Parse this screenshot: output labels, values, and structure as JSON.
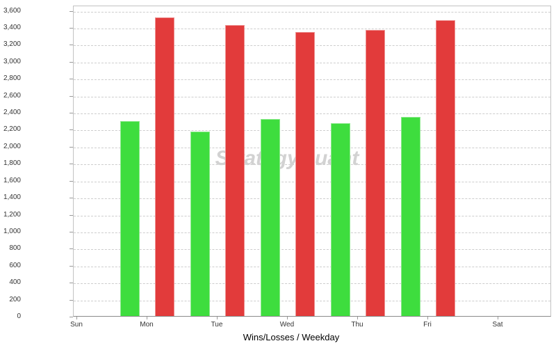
{
  "chart_data": {
    "type": "bar",
    "title": "",
    "xlabel": "Wins/Losses / Weekday",
    "ylabel": "",
    "categories": [
      "Sun",
      "Mon",
      "Tue",
      "Wed",
      "Thu",
      "Fri",
      "Sat"
    ],
    "series": [
      {
        "name": "Wins",
        "color": "#3edd3e",
        "border_color": "#8dea8d",
        "values": [
          0,
          2290,
          2170,
          2320,
          2270,
          2340,
          0
        ]
      },
      {
        "name": "Losses",
        "color": "#e23b3b",
        "border_color": "#ee9292",
        "values": [
          0,
          3510,
          3420,
          3340,
          3370,
          3480,
          0
        ]
      }
    ],
    "ylim": [
      0,
      3600
    ],
    "ytick_step": 200,
    "ytick_labels": [
      "0",
      "200",
      "400",
      "600",
      "800",
      "1,000",
      "1,200",
      "1,400",
      "1,600",
      "1,800",
      "2,000",
      "2,200",
      "2,400",
      "2,600",
      "2,800",
      "3,000",
      "3,200",
      "3,400",
      "3,600"
    ],
    "grid": "horizontal-dashed",
    "legend": "none",
    "watermark": "StrategyQuant",
    "colors": {
      "grid": "#cdcdcd",
      "plot_border": "#c2c2c2",
      "axis_line": "#8a8a8a",
      "tick_label": "#333333",
      "watermark": "#d2d2d2",
      "background": "#ffffff"
    }
  }
}
